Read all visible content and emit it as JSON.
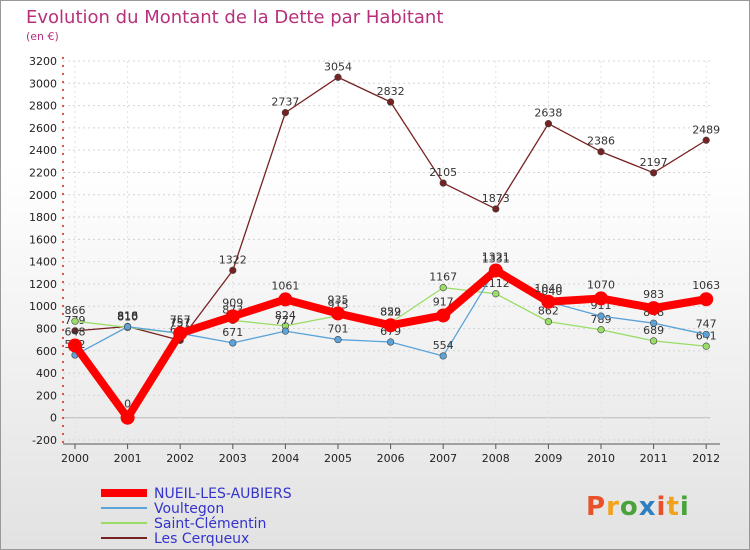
{
  "header": {
    "title": "Evolution du Montant de la Dette par Habitant",
    "subtitle": "(en €)"
  },
  "brand": {
    "name": "Proxiti",
    "colors": [
      "#e8512a",
      "#f2a31b",
      "#4aa33a",
      "#2d7fc1",
      "#e8512a",
      "#f2a31b",
      "#4aa33a"
    ]
  },
  "chart_data": {
    "type": "line",
    "title": "Evolution du Montant de la Dette par Habitant",
    "subtitle": "(en €)",
    "categories": [
      "2000",
      "2001",
      "2002",
      "2003",
      "2004",
      "2005",
      "2006",
      "2007",
      "2008",
      "2009",
      "2010",
      "2011",
      "2012"
    ],
    "ylim": [
      -200,
      3200
    ],
    "yticks": [
      -200,
      0,
      200,
      400,
      600,
      800,
      1000,
      1200,
      1400,
      1600,
      1800,
      2000,
      2200,
      2400,
      2600,
      2800,
      3000,
      3200
    ],
    "grid": true,
    "legend_position": "bottom-left",
    "series": [
      {
        "name": "NUEIL-LES-AUBIERS",
        "color": "#ff0000",
        "values": [
          648,
          0,
          757,
          909,
          1061,
          935,
          829,
          917,
          1321,
          1040,
          1070,
          983,
          1063
        ],
        "labels": [
          "648",
          "0",
          "757",
          "909",
          "1061",
          "935",
          "829",
          "917",
          "1321",
          "1040",
          "1070",
          "983",
          "1063"
        ]
      },
      {
        "name": "Voultegon",
        "color": "#5ba3d9",
        "values": [
          562,
          816,
          757,
          671,
          777,
          701,
          679,
          554,
          1331,
          1040,
          911,
          848,
          747
        ],
        "labels": [
          "562",
          "816",
          "757",
          "671",
          "777",
          "701",
          "679",
          "554",
          "1331",
          "1040",
          "911",
          "848",
          "747"
        ]
      },
      {
        "name": "Saint-Clémentin",
        "color": "#99dd66",
        "values": [
          866,
          810,
          757,
          873,
          824,
          915,
          852,
          1167,
          1112,
          862,
          789,
          689,
          641
        ],
        "labels": [
          "866",
          "810",
          "757",
          "873",
          "824",
          "915",
          "852",
          "1167",
          "1112",
          "862",
          "789",
          "689",
          "641"
        ]
      },
      {
        "name": "Les Cerqueux",
        "color": "#772222",
        "values": [
          779,
          818,
          694,
          1322,
          2737,
          3054,
          2832,
          2105,
          1873,
          2638,
          2386,
          2197,
          2489
        ],
        "labels": [
          "779",
          "818",
          "694",
          "1322",
          "2737",
          "3054",
          "2832",
          "2105",
          "1873",
          "2638",
          "2386",
          "2197",
          "2489"
        ]
      }
    ]
  }
}
